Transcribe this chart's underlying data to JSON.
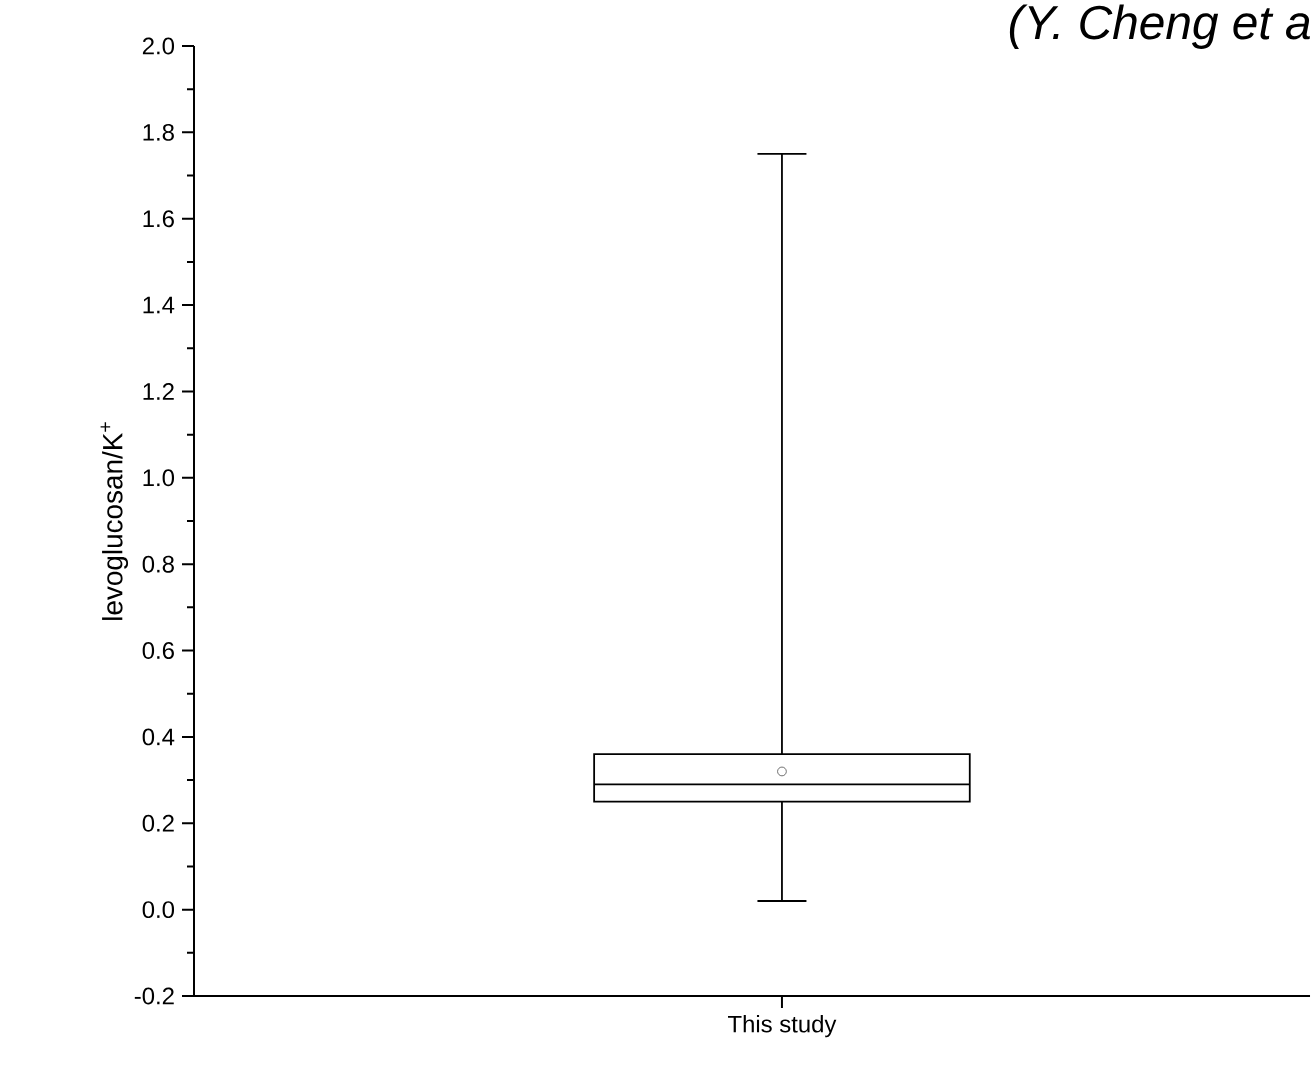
{
  "chart_data": {
    "type": "box",
    "title": "(Y. Cheng et a",
    "ylabel": "levoglucosan/K$^{+}$",
    "categories": [
      "This study"
    ],
    "boxes": [
      {
        "low": 0.02,
        "q1": 0.25,
        "median": 0.29,
        "q3": 0.36,
        "high": 1.75,
        "mean": 0.32
      }
    ],
    "ylim": [
      -0.2,
      2.0
    ],
    "yticks": [
      -0.2,
      {
        "value": 0,
        "label": "0.0"
      },
      0.2,
      0.4,
      0.6,
      0.8,
      {
        "value": 1,
        "label": "1.0"
      },
      1.2,
      1.4,
      1.6,
      1.8,
      {
        "value": 2,
        "label": "2.0"
      }
    ]
  }
}
